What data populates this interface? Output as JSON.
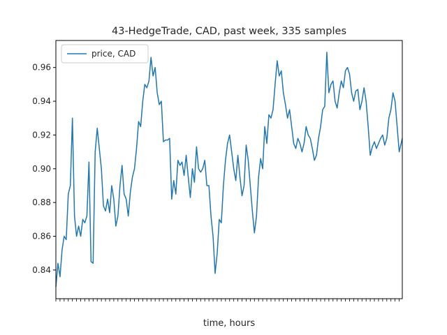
{
  "chart_data": {
    "type": "line",
    "title": "43-HedgeTrade, CAD, past week, 335 samples",
    "xlabel": "time, hours",
    "ylabel": "",
    "xlim": [
      0,
      335
    ],
    "ylim": [
      0.823,
      0.976
    ],
    "yticks": [
      "0.84",
      "0.86",
      "0.88",
      "0.90",
      "0.92",
      "0.94",
      "0.96"
    ],
    "yticks_values": [
      0.84,
      0.86,
      0.88,
      0.9,
      0.92,
      0.94,
      0.96
    ],
    "grid": false,
    "legend_position": "top-left",
    "series": [
      {
        "name": "price, CAD",
        "color": "#1f77b4",
        "points": [
          [
            0,
            0.83
          ],
          [
            2,
            0.844
          ],
          [
            4,
            0.836
          ],
          [
            6,
            0.852
          ],
          [
            8,
            0.86
          ],
          [
            10,
            0.858
          ],
          [
            12,
            0.885
          ],
          [
            14,
            0.89
          ],
          [
            16,
            0.93
          ],
          [
            18,
            0.872
          ],
          [
            20,
            0.86
          ],
          [
            22,
            0.866
          ],
          [
            24,
            0.86
          ],
          [
            26,
            0.87
          ],
          [
            28,
            0.868
          ],
          [
            30,
            0.872
          ],
          [
            32,
            0.904
          ],
          [
            34,
            0.845
          ],
          [
            36,
            0.844
          ],
          [
            38,
            0.91
          ],
          [
            40,
            0.924
          ],
          [
            42,
            0.912
          ],
          [
            44,
            0.9
          ],
          [
            46,
            0.878
          ],
          [
            48,
            0.875
          ],
          [
            50,
            0.882
          ],
          [
            52,
            0.874
          ],
          [
            54,
            0.89
          ],
          [
            56,
            0.882
          ],
          [
            58,
            0.866
          ],
          [
            60,
            0.872
          ],
          [
            62,
            0.89
          ],
          [
            64,
            0.902
          ],
          [
            66,
            0.885
          ],
          [
            68,
            0.882
          ],
          [
            70,
            0.872
          ],
          [
            72,
            0.886
          ],
          [
            74,
            0.895
          ],
          [
            76,
            0.9
          ],
          [
            78,
            0.912
          ],
          [
            80,
            0.928
          ],
          [
            82,
            0.925
          ],
          [
            84,
            0.94
          ],
          [
            86,
            0.95
          ],
          [
            88,
            0.948
          ],
          [
            90,
            0.952
          ],
          [
            92,
            0.966
          ],
          [
            94,
            0.955
          ],
          [
            96,
            0.96
          ],
          [
            98,
            0.945
          ],
          [
            100,
            0.938
          ],
          [
            102,
            0.94
          ],
          [
            104,
            0.916
          ],
          [
            106,
            0.917
          ],
          [
            108,
            0.917
          ],
          [
            110,
            0.918
          ],
          [
            112,
            0.882
          ],
          [
            114,
            0.893
          ],
          [
            116,
            0.885
          ],
          [
            118,
            0.905
          ],
          [
            120,
            0.902
          ],
          [
            122,
            0.904
          ],
          [
            124,
            0.896
          ],
          [
            126,
            0.908
          ],
          [
            128,
            0.895
          ],
          [
            130,
            0.883
          ],
          [
            132,
            0.9
          ],
          [
            134,
            0.892
          ],
          [
            136,
            0.913
          ],
          [
            138,
            0.9
          ],
          [
            140,
            0.898
          ],
          [
            142,
            0.9
          ],
          [
            144,
            0.905
          ],
          [
            146,
            0.89
          ],
          [
            148,
            0.89
          ],
          [
            150,
            0.872
          ],
          [
            152,
            0.86
          ],
          [
            154,
            0.838
          ],
          [
            156,
            0.85
          ],
          [
            158,
            0.87
          ],
          [
            160,
            0.868
          ],
          [
            162,
            0.89
          ],
          [
            164,
            0.905
          ],
          [
            166,
            0.915
          ],
          [
            168,
            0.92
          ],
          [
            170,
            0.91
          ],
          [
            172,
            0.9
          ],
          [
            174,
            0.893
          ],
          [
            176,
            0.908
          ],
          [
            178,
            0.895
          ],
          [
            180,
            0.884
          ],
          [
            182,
            0.89
          ],
          [
            184,
            0.914
          ],
          [
            186,
            0.905
          ],
          [
            188,
            0.89
          ],
          [
            190,
            0.875
          ],
          [
            192,
            0.862
          ],
          [
            194,
            0.872
          ],
          [
            196,
            0.895
          ],
          [
            198,
            0.906
          ],
          [
            200,
            0.9
          ],
          [
            202,
            0.925
          ],
          [
            204,
            0.915
          ],
          [
            206,
            0.932
          ],
          [
            208,
            0.93
          ],
          [
            210,
            0.935
          ],
          [
            212,
            0.95
          ],
          [
            214,
            0.964
          ],
          [
            216,
            0.955
          ],
          [
            218,
            0.958
          ],
          [
            220,
            0.945
          ],
          [
            222,
            0.938
          ],
          [
            224,
            0.93
          ],
          [
            226,
            0.935
          ],
          [
            228,
            0.925
          ],
          [
            230,
            0.915
          ],
          [
            232,
            0.912
          ],
          [
            234,
            0.918
          ],
          [
            236,
            0.915
          ],
          [
            238,
            0.91
          ],
          [
            240,
            0.915
          ],
          [
            242,
            0.925
          ],
          [
            244,
            0.92
          ],
          [
            246,
            0.918
          ],
          [
            248,
            0.912
          ],
          [
            250,
            0.905
          ],
          [
            252,
            0.908
          ],
          [
            254,
            0.918
          ],
          [
            256,
            0.925
          ],
          [
            258,
            0.935
          ],
          [
            260,
            0.937
          ],
          [
            262,
            0.969
          ],
          [
            264,
            0.945
          ],
          [
            266,
            0.95
          ],
          [
            268,
            0.952
          ],
          [
            270,
            0.94
          ],
          [
            272,
            0.936
          ],
          [
            274,
            0.945
          ],
          [
            276,
            0.952
          ],
          [
            278,
            0.948
          ],
          [
            280,
            0.958
          ],
          [
            282,
            0.96
          ],
          [
            284,
            0.956
          ],
          [
            286,
            0.945
          ],
          [
            288,
            0.94
          ],
          [
            290,
            0.946
          ],
          [
            292,
            0.947
          ],
          [
            294,
            0.935
          ],
          [
            296,
            0.94
          ],
          [
            298,
            0.948
          ],
          [
            300,
            0.94
          ],
          [
            302,
            0.925
          ],
          [
            304,
            0.908
          ],
          [
            306,
            0.913
          ],
          [
            308,
            0.916
          ],
          [
            310,
            0.912
          ],
          [
            312,
            0.915
          ],
          [
            314,
            0.918
          ],
          [
            316,
            0.92
          ],
          [
            318,
            0.914
          ],
          [
            320,
            0.918
          ],
          [
            322,
            0.93
          ],
          [
            324,
            0.935
          ],
          [
            326,
            0.945
          ],
          [
            328,
            0.94
          ],
          [
            330,
            0.925
          ],
          [
            332,
            0.91
          ],
          [
            335,
            0.918
          ]
        ]
      }
    ]
  }
}
